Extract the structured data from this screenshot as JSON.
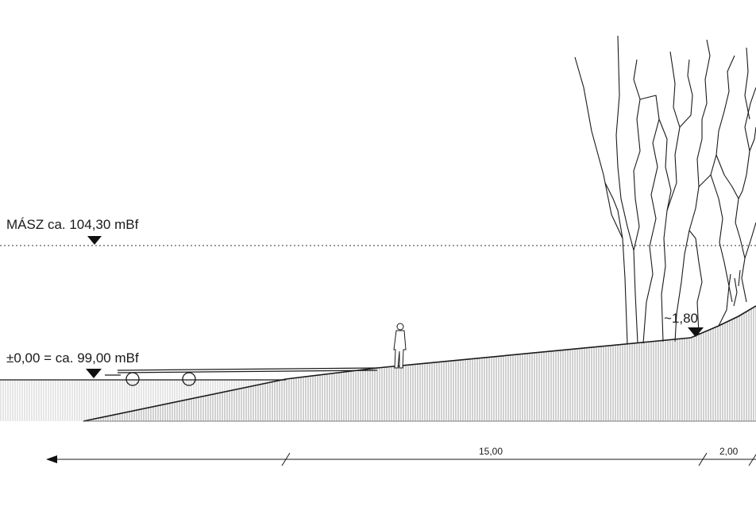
{
  "labels": {
    "flood_level": "MÁSZ ca. 104,30 mBf",
    "zero_level": "±0,00 = ca. 99,00 mBf",
    "embankment_level": "~1,80"
  },
  "dimensions": {
    "main": "15,00",
    "side": "2,00"
  },
  "colors": {
    "line": "#1a1a1a",
    "hatch": "#777777",
    "background": "#ffffff"
  },
  "icons": [
    "level-marker-icon",
    "person-figure",
    "tree-trunk",
    "boat-trailer"
  ]
}
